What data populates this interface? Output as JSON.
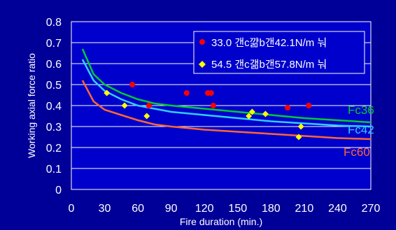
{
  "chart_data": {
    "type": "scatter",
    "xlabel": "Fire duration (min.)",
    "ylabel": "Working axial force ratio",
    "xlim": [
      0,
      270
    ],
    "ylim": [
      0,
      0.8
    ],
    "xticks": [
      0,
      30,
      60,
      90,
      120,
      150,
      180,
      210,
      240,
      270
    ],
    "yticks": [
      0,
      0.1,
      0.2,
      0.3,
      0.4,
      0.5,
      0.6,
      0.7,
      0.8
    ],
    "grid": "horizontal",
    "legend_position": "top-right",
    "colors": {
      "background": "#000099",
      "plot_area": "#0000cc",
      "grid": "#ffffff",
      "red_points": "#ff0000",
      "yellow_points": "#ffff00",
      "Fc36": "#00cc33",
      "Fc42": "#33ccff",
      "Fc60": "#ff6633"
    },
    "scatter_series": [
      {
        "name": "33.0 갠c꺎b갠42.1N/m 눠",
        "marker": "circle",
        "color": "#ff0000",
        "points": [
          [
            55,
            0.5
          ],
          [
            70,
            0.4
          ],
          [
            104,
            0.46
          ],
          [
            123,
            0.46
          ],
          [
            126,
            0.46
          ],
          [
            128,
            0.4
          ],
          [
            195,
            0.39
          ],
          [
            214,
            0.4
          ]
        ]
      },
      {
        "name": "54.5 갠c갦b갠57.8N/m 눠",
        "marker": "diamond",
        "color": "#ffff00",
        "points": [
          [
            32,
            0.46
          ],
          [
            48,
            0.4
          ],
          [
            68,
            0.35
          ],
          [
            160,
            0.35
          ],
          [
            163,
            0.37
          ],
          [
            175,
            0.36
          ],
          [
            205,
            0.25
          ],
          [
            207,
            0.3
          ]
        ]
      }
    ],
    "line_series": [
      {
        "name": "Fc36",
        "color": "#00cc33",
        "points": [
          [
            10,
            0.67
          ],
          [
            20,
            0.55
          ],
          [
            30,
            0.5
          ],
          [
            45,
            0.46
          ],
          [
            60,
            0.43
          ],
          [
            75,
            0.41
          ],
          [
            90,
            0.4
          ],
          [
            120,
            0.385
          ],
          [
            150,
            0.37
          ],
          [
            180,
            0.355
          ],
          [
            210,
            0.34
          ],
          [
            240,
            0.33
          ],
          [
            270,
            0.32
          ]
        ]
      },
      {
        "name": "Fc42",
        "color": "#33ccff",
        "points": [
          [
            10,
            0.62
          ],
          [
            20,
            0.52
          ],
          [
            30,
            0.47
          ],
          [
            45,
            0.43
          ],
          [
            60,
            0.4
          ],
          [
            75,
            0.385
          ],
          [
            90,
            0.37
          ],
          [
            120,
            0.355
          ],
          [
            150,
            0.34
          ],
          [
            180,
            0.325
          ],
          [
            210,
            0.315
          ],
          [
            240,
            0.305
          ],
          [
            270,
            0.3
          ]
        ]
      },
      {
        "name": "Fc60",
        "color": "#ff6633",
        "points": [
          [
            10,
            0.52
          ],
          [
            20,
            0.42
          ],
          [
            30,
            0.38
          ],
          [
            45,
            0.355
          ],
          [
            60,
            0.33
          ],
          [
            75,
            0.31
          ],
          [
            90,
            0.3
          ],
          [
            120,
            0.285
          ],
          [
            150,
            0.275
          ],
          [
            180,
            0.265
          ],
          [
            210,
            0.255
          ],
          [
            240,
            0.245
          ],
          [
            270,
            0.24
          ]
        ]
      }
    ]
  }
}
